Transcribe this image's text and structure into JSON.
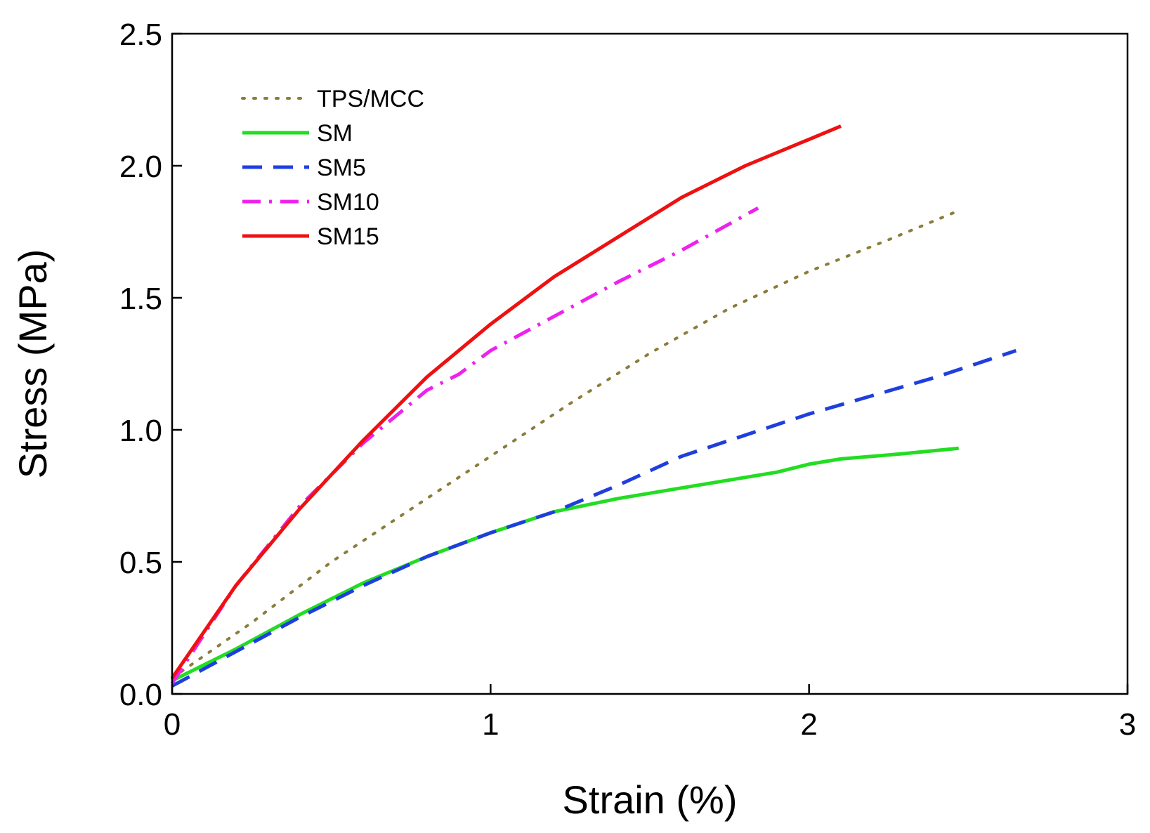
{
  "chart_data": {
    "type": "line",
    "title": "",
    "xlabel": "Strain (%)",
    "ylabel": "Stress (MPa)",
    "xlim": [
      0,
      3
    ],
    "ylim": [
      0,
      2.5
    ],
    "xticks": [
      0,
      1,
      2,
      3
    ],
    "xtick_labels": [
      "0",
      "1",
      "2",
      "3"
    ],
    "yticks": [
      0,
      0.5,
      1.0,
      1.5,
      2.0,
      2.5
    ],
    "ytick_labels": [
      "0.0",
      "0.5",
      "1.0",
      "1.5",
      "2.0",
      "2.5"
    ],
    "grid": false,
    "legend_position": "top-left",
    "series": [
      {
        "name": "TPS/MCC",
        "color": "#8b7d3a",
        "style": "dotted",
        "points": [
          [
            0,
            0.06
          ],
          [
            0.25,
            0.27
          ],
          [
            0.5,
            0.5
          ],
          [
            0.75,
            0.7
          ],
          [
            1.0,
            0.9
          ],
          [
            1.25,
            1.1
          ],
          [
            1.5,
            1.29
          ],
          [
            1.75,
            1.46
          ],
          [
            2.0,
            1.6
          ],
          [
            2.25,
            1.72
          ],
          [
            2.47,
            1.83
          ]
        ]
      },
      {
        "name": "SM",
        "color": "#22dd22",
        "style": "solid",
        "points": [
          [
            0,
            0.05
          ],
          [
            0.2,
            0.17
          ],
          [
            0.4,
            0.3
          ],
          [
            0.6,
            0.42
          ],
          [
            0.8,
            0.52
          ],
          [
            1.0,
            0.61
          ],
          [
            1.2,
            0.69
          ],
          [
            1.4,
            0.74
          ],
          [
            1.6,
            0.78
          ],
          [
            1.8,
            0.82
          ],
          [
            1.9,
            0.84
          ],
          [
            2.0,
            0.87
          ],
          [
            2.1,
            0.89
          ],
          [
            2.3,
            0.91
          ],
          [
            2.47,
            0.93
          ]
        ]
      },
      {
        "name": "SM5",
        "color": "#1f3fdd",
        "style": "dashed",
        "points": [
          [
            0,
            0.03
          ],
          [
            0.2,
            0.16
          ],
          [
            0.4,
            0.29
          ],
          [
            0.6,
            0.41
          ],
          [
            0.8,
            0.52
          ],
          [
            1.0,
            0.61
          ],
          [
            1.2,
            0.69
          ],
          [
            1.4,
            0.79
          ],
          [
            1.6,
            0.9
          ],
          [
            1.8,
            0.98
          ],
          [
            2.0,
            1.06
          ],
          [
            2.2,
            1.13
          ],
          [
            2.4,
            1.2
          ],
          [
            2.65,
            1.3
          ]
        ]
      },
      {
        "name": "SM10",
        "color": "#ee22ee",
        "style": "dashdot",
        "points": [
          [
            0,
            0.04
          ],
          [
            0.2,
            0.41
          ],
          [
            0.4,
            0.71
          ],
          [
            0.6,
            0.95
          ],
          [
            0.8,
            1.15
          ],
          [
            0.9,
            1.21
          ],
          [
            1.0,
            1.3
          ],
          [
            1.2,
            1.43
          ],
          [
            1.4,
            1.56
          ],
          [
            1.6,
            1.68
          ],
          [
            1.84,
            1.84
          ]
        ]
      },
      {
        "name": "SM15",
        "color": "#ee1111",
        "style": "solid",
        "points": [
          [
            0,
            0.06
          ],
          [
            0.2,
            0.41
          ],
          [
            0.4,
            0.7
          ],
          [
            0.6,
            0.96
          ],
          [
            0.8,
            1.2
          ],
          [
            1.0,
            1.4
          ],
          [
            1.2,
            1.58
          ],
          [
            1.4,
            1.73
          ],
          [
            1.6,
            1.88
          ],
          [
            1.8,
            2.0
          ],
          [
            2.0,
            2.1
          ],
          [
            2.1,
            2.15
          ]
        ]
      }
    ]
  }
}
